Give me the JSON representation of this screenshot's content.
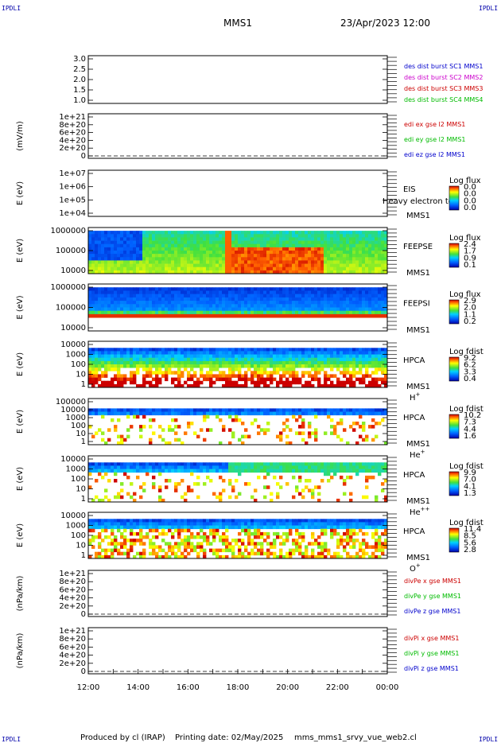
{
  "header": {
    "corner_tl": "IPDLI",
    "corner_tr": "IPDLI",
    "corner_bl": "IPDLI",
    "corner_br": "IPDLI",
    "spacecraft": "MMS1",
    "datetime": "23/Apr/2023 12:00"
  },
  "footer": {
    "produced_by": "Produced by cl (IRAP)",
    "printing_date": "Printing date: 02/May/2025",
    "script": "mms_mms1_srvy_vue_web2.cl"
  },
  "time_axis": {
    "ticks": [
      "12:00",
      "14:00",
      "16:00",
      "18:00",
      "20:00",
      "22:00",
      "00:00"
    ]
  },
  "panels": [
    {
      "id": "panel1",
      "kind": "line",
      "ylabel": "",
      "yticks": [
        "3.0",
        "2.5",
        "2.0",
        "1.5",
        "1.0"
      ],
      "zero_line": false,
      "legend": [
        {
          "text": "des dist burst SC1 MMS1",
          "color": "#0000cc"
        },
        {
          "text": "des dist burst SC2 MMS2",
          "color": "#cc00cc"
        },
        {
          "text": "des dist burst SC3 MMS3",
          "color": "#cc0000"
        },
        {
          "text": "des dist burst SC4 MMS4",
          "color": "#00bb00"
        }
      ]
    },
    {
      "id": "panel2",
      "kind": "line",
      "ylabel": "(mV/m)",
      "yticks": [
        "1e+21",
        "8e+20",
        "6e+20",
        "4e+20",
        "2e+20",
        "0"
      ],
      "zero_line": true,
      "legend": [
        {
          "text": "edi ex gse l2 MMS1",
          "color": "#cc0000"
        },
        {
          "text": "edi ey gse l2 MMS1",
          "color": "#00bb00"
        },
        {
          "text": "edi ez gse l2 MMS1",
          "color": "#0000cc"
        }
      ]
    },
    {
      "id": "panel3",
      "kind": "empty-spectrogram",
      "ylabel": "E (eV)",
      "yticks": [
        "1e+07",
        "1e+06",
        "1e+05",
        "1e+04"
      ],
      "instrument": "EIS",
      "spacecraft": "MMS1",
      "overlay_text": "Heavy electron to",
      "cbar_title": "Log flux",
      "cbar_ticks": [
        "0.0",
        "0.0",
        "0.0",
        "0.0"
      ]
    },
    {
      "id": "panel4",
      "kind": "spectrogram",
      "ylabel": "E (eV)",
      "yticks": [
        "1000000",
        "100000",
        "10000"
      ],
      "instrument": "FEEPSE",
      "spacecraft": "MMS1",
      "cbar_title": "Log flux",
      "cbar_ticks": [
        "2.4",
        "1.7",
        "0.9",
        "0.1"
      ]
    },
    {
      "id": "panel5",
      "kind": "spectrogram",
      "ylabel": "E (eV)",
      "yticks": [
        "1000000",
        "100000",
        "10000"
      ],
      "instrument": "FEEPSI",
      "spacecraft": "MMS1",
      "cbar_title": "Log flux",
      "cbar_ticks": [
        "2.9",
        "2.0",
        "1.1",
        "0.2"
      ]
    },
    {
      "id": "panel6",
      "kind": "spectrogram",
      "ylabel": "E (eV)",
      "yticks": [
        "10000",
        "1000",
        "100",
        "10",
        "1"
      ],
      "instrument": "HPCA",
      "spacecraft": "MMS1",
      "species": "H",
      "species_sup": "+",
      "cbar_title": "Log fdist",
      "cbar_ticks": [
        "9.2",
        "6.2",
        "3.3",
        "0.4"
      ]
    },
    {
      "id": "panel7",
      "kind": "spectrogram",
      "ylabel": "E (eV)",
      "yticks": [
        "100000",
        "10000",
        "1000",
        "100",
        "10",
        "1"
      ],
      "instrument": "HPCA",
      "spacecraft": "MMS1",
      "species": "He",
      "species_sup": "+",
      "cbar_title": "Log fdist",
      "cbar_ticks": [
        "10.2",
        "7.3",
        "4.4",
        "1.6"
      ]
    },
    {
      "id": "panel8",
      "kind": "spectrogram",
      "ylabel": "E (eV)",
      "yticks": [
        "10000",
        "1000",
        "100",
        "10",
        "1"
      ],
      "instrument": "HPCA",
      "spacecraft": "MMS1",
      "species": "He",
      "species_sup": "++",
      "cbar_title": "Log fdist",
      "cbar_ticks": [
        "9.9",
        "7.0",
        "4.1",
        "1.3"
      ]
    },
    {
      "id": "panel9",
      "kind": "spectrogram",
      "ylabel": "E (eV)",
      "yticks": [
        "10000",
        "1000",
        "100",
        "10",
        "1"
      ],
      "instrument": "HPCA",
      "spacecraft": "MMS1",
      "species": "O",
      "species_sup": "+",
      "cbar_title": "Log fdist",
      "cbar_ticks": [
        "11.4",
        "8.5",
        "5.6",
        "2.8"
      ]
    },
    {
      "id": "panel10",
      "kind": "line",
      "ylabel": "(nPa/km)",
      "yticks": [
        "1e+21",
        "8e+20",
        "6e+20",
        "4e+20",
        "2e+20",
        "0"
      ],
      "zero_line": true,
      "legend": [
        {
          "text": "divPe x gse MMS1",
          "color": "#cc0000"
        },
        {
          "text": "divPe y gse MMS1",
          "color": "#00bb00"
        },
        {
          "text": "divPe z gse MMS1",
          "color": "#0000cc"
        }
      ]
    },
    {
      "id": "panel11",
      "kind": "line",
      "ylabel": "(nPa/km)",
      "yticks": [
        "1e+21",
        "8e+20",
        "6e+20",
        "4e+20",
        "2e+20",
        "0"
      ],
      "zero_line": true,
      "legend": [
        {
          "text": "divPi x gse MMS1",
          "color": "#cc0000"
        },
        {
          "text": "divPi y gse MMS1",
          "color": "#00bb00"
        },
        {
          "text": "divPi z gse MMS1",
          "color": "#0000cc"
        }
      ]
    }
  ],
  "chart_data": {
    "type": "heatmap",
    "title": "MMS1",
    "xlabel": "",
    "x_range": [
      "12:00",
      "00:00"
    ],
    "description_series": [
      {
        "name": "FEEPSE",
        "ylabel": "E (eV)",
        "ylim": [
          10000,
          1000000
        ],
        "color_scale_range": [
          0.1,
          2.4
        ],
        "color_scale": "Log flux"
      },
      {
        "name": "FEEPSI",
        "ylabel": "E (eV)",
        "ylim": [
          10000,
          1000000
        ],
        "color_scale_range": [
          0.2,
          2.9
        ],
        "color_scale": "Log flux"
      },
      {
        "name": "HPCA H+",
        "ylabel": "E (eV)",
        "ylim": [
          1,
          10000
        ],
        "color_scale_range": [
          0.4,
          9.2
        ],
        "color_scale": "Log fdist"
      },
      {
        "name": "HPCA He+",
        "ylabel": "E (eV)",
        "ylim": [
          1,
          100000
        ],
        "color_scale_range": [
          1.6,
          10.2
        ],
        "color_scale": "Log fdist"
      },
      {
        "name": "HPCA He++",
        "ylabel": "E (eV)",
        "ylim": [
          1,
          10000
        ],
        "color_scale_range": [
          1.3,
          9.9
        ],
        "color_scale": "Log fdist"
      },
      {
        "name": "HPCA O+",
        "ylabel": "E (eV)",
        "ylim": [
          1,
          10000
        ],
        "color_scale_range": [
          2.8,
          11.4
        ],
        "color_scale": "Log fdist"
      }
    ],
    "grid": false,
    "legend_placement": "right"
  }
}
